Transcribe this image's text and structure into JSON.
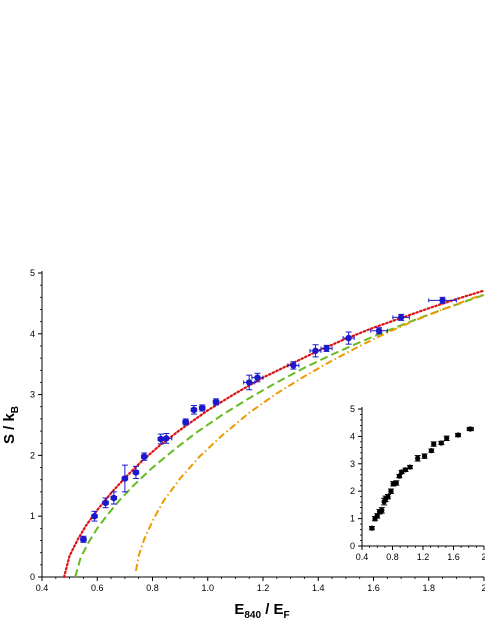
{
  "chart_data": [
    {
      "type": "scatter",
      "title": "",
      "xlabel": "E840 / EF",
      "xlabel_parts": {
        "main": "E",
        "sub1": "840",
        "mid": " / E",
        "sub2": "F"
      },
      "ylabel": "S / kB",
      "ylabel_parts": {
        "main": "S / k",
        "sub": "B"
      },
      "xlim": [
        0.4,
        2.0
      ],
      "ylim": [
        0,
        5
      ],
      "xticks": [
        0.4,
        0.6,
        0.8,
        1.0,
        1.2,
        1.4,
        1.6,
        1.8,
        2.0
      ],
      "xtick_labels": [
        "0.4",
        "0.6",
        "0.8",
        "1.0",
        "1.2",
        "1.4",
        "1.6",
        "1.8",
        "2"
      ],
      "yticks": [
        0,
        1,
        2,
        3,
        4,
        5
      ],
      "ytick_labels": [
        "0",
        "1",
        "2",
        "3",
        "4",
        "5"
      ],
      "grid": false,
      "colors": {
        "points": "#1a1acc",
        "dotted": "#dd1111",
        "dashed": "#66bb22",
        "dashdot": "#ee9900"
      },
      "series": [
        {
          "style": "points",
          "x": [
            0.55,
            0.59,
            0.63,
            0.66,
            0.7,
            0.74,
            0.77,
            0.83,
            0.85,
            0.92,
            0.95,
            0.98,
            1.03,
            1.15,
            1.18,
            1.31,
            1.39,
            1.43,
            1.51,
            1.62,
            1.7,
            1.85
          ],
          "y": [
            0.62,
            1.0,
            1.22,
            1.3,
            1.62,
            1.72,
            1.98,
            2.27,
            2.28,
            2.55,
            2.75,
            2.78,
            2.88,
            3.2,
            3.28,
            3.48,
            3.72,
            3.76,
            3.93,
            4.05,
            4.27,
            4.55
          ],
          "yerr": [
            0.05,
            0.08,
            0.08,
            0.1,
            0.22,
            0.1,
            0.06,
            0.08,
            0.08,
            0.05,
            0.07,
            0.05,
            0.05,
            0.12,
            0.07,
            0.06,
            0.1,
            0.05,
            0.1,
            0.05,
            0.05,
            0.05
          ],
          "xerr": [
            0.01,
            0.01,
            0.01,
            0.01,
            0.01,
            0.01,
            0.01,
            0.01,
            0.02,
            0.01,
            0.01,
            0.01,
            0.01,
            0.02,
            0.02,
            0.02,
            0.02,
            0.02,
            0.02,
            0.03,
            0.03,
            0.05
          ]
        },
        {
          "style": "dotted",
          "x": [
            0.48,
            0.5,
            0.53,
            0.56,
            0.6,
            0.65,
            0.7,
            0.76,
            0.83,
            0.9,
            1.0,
            1.1,
            1.2,
            1.3,
            1.4,
            1.5,
            1.6,
            1.7,
            1.8,
            1.9,
            2.0
          ],
          "y": [
            0.0,
            0.35,
            0.62,
            0.85,
            1.1,
            1.38,
            1.63,
            1.9,
            2.18,
            2.42,
            2.74,
            3.02,
            3.28,
            3.5,
            3.72,
            3.92,
            4.1,
            4.26,
            4.42,
            4.57,
            4.71
          ]
        },
        {
          "style": "dashed",
          "x": [
            0.52,
            0.54,
            0.57,
            0.6,
            0.64,
            0.68,
            0.73,
            0.8,
            0.88,
            0.96,
            1.05,
            1.15,
            1.25,
            1.35,
            1.45,
            1.55,
            1.65,
            1.75,
            1.85,
            1.95,
            2.0
          ],
          "y": [
            0.0,
            0.32,
            0.58,
            0.8,
            1.04,
            1.26,
            1.5,
            1.8,
            2.1,
            2.38,
            2.66,
            2.94,
            3.2,
            3.44,
            3.66,
            3.86,
            4.05,
            4.23,
            4.4,
            4.56,
            4.64
          ]
        },
        {
          "style": "dashdot",
          "x": [
            0.74,
            0.75,
            0.77,
            0.8,
            0.84,
            0.9,
            0.97,
            1.05,
            1.15,
            1.25,
            1.35,
            1.45,
            1.55,
            1.65,
            1.75,
            1.85,
            1.95,
            2.0
          ],
          "y": [
            0.1,
            0.35,
            0.62,
            0.92,
            1.25,
            1.62,
            1.98,
            2.32,
            2.7,
            3.02,
            3.3,
            3.56,
            3.8,
            4.02,
            4.22,
            4.4,
            4.57,
            4.65
          ]
        }
      ]
    },
    {
      "type": "scatter",
      "title": "",
      "xlabel": "",
      "ylabel": "",
      "xlim": [
        0.4,
        2.0
      ],
      "ylim": [
        0,
        5
      ],
      "xticks": [
        0.4,
        0.8,
        1.2,
        1.6,
        2.0
      ],
      "xtick_labels": [
        "0.4",
        "0.8",
        "1.2",
        "1.6",
        "2"
      ],
      "yticks": [
        0,
        1,
        2,
        3,
        4,
        5
      ],
      "ytick_labels": [
        "0",
        "1",
        "2",
        "3",
        "4",
        "5"
      ],
      "grid": false,
      "colors": {
        "points": "#000000"
      },
      "series": [
        {
          "style": "points",
          "x": [
            0.53,
            0.57,
            0.6,
            0.63,
            0.66,
            0.69,
            0.71,
            0.74,
            0.78,
            0.81,
            0.85,
            0.89,
            0.92,
            0.97,
            1.03,
            1.13,
            1.22,
            1.31,
            1.34,
            1.44,
            1.51,
            1.66,
            1.82
          ],
          "y": [
            0.65,
            1.0,
            1.1,
            1.25,
            1.3,
            1.62,
            1.72,
            1.8,
            2.0,
            2.27,
            2.3,
            2.55,
            2.7,
            2.78,
            2.88,
            3.2,
            3.28,
            3.48,
            3.72,
            3.76,
            3.93,
            4.05,
            4.27
          ],
          "xerr": [
            0.02,
            0.02,
            0.02,
            0.02,
            0.02,
            0.02,
            0.02,
            0.02,
            0.02,
            0.02,
            0.02,
            0.02,
            0.02,
            0.02,
            0.02,
            0.02,
            0.02,
            0.02,
            0.02,
            0.02,
            0.02,
            0.03,
            0.04
          ],
          "yerr": [
            0.06,
            0.08,
            0.08,
            0.08,
            0.1,
            0.12,
            0.1,
            0.08,
            0.08,
            0.08,
            0.08,
            0.06,
            0.06,
            0.06,
            0.06,
            0.1,
            0.08,
            0.06,
            0.08,
            0.06,
            0.08,
            0.06,
            0.06
          ]
        }
      ]
    }
  ]
}
